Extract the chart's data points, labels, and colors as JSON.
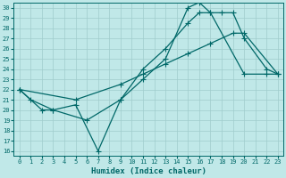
{
  "background_color": "#c0e8e8",
  "grid_color": "#a0cccc",
  "line_color": "#006868",
  "xlabel": "Humidex (Indice chaleur)",
  "xlim": [
    -0.5,
    23.5
  ],
  "ylim": [
    15.5,
    30.5
  ],
  "yticks": [
    16,
    17,
    18,
    19,
    20,
    21,
    22,
    23,
    24,
    25,
    26,
    27,
    28,
    29,
    30
  ],
  "xticks": [
    0,
    1,
    2,
    3,
    4,
    5,
    6,
    7,
    8,
    9,
    10,
    11,
    12,
    13,
    14,
    15,
    16,
    17,
    18,
    19,
    20,
    21,
    22,
    23
  ],
  "line1_x": [
    0,
    2,
    3,
    5,
    7,
    9,
    11,
    13,
    15,
    16,
    17,
    20,
    22,
    23
  ],
  "line1_y": [
    22,
    20,
    20,
    20.5,
    16,
    21,
    23,
    25,
    30,
    30.5,
    29.5,
    23.5,
    23.5,
    23.5
  ],
  "line2_x": [
    0,
    1,
    3,
    6,
    9,
    11,
    13,
    15,
    16,
    17,
    18,
    19,
    20,
    22,
    23
  ],
  "line2_y": [
    22,
    21,
    20,
    19,
    21,
    24,
    26,
    28.5,
    29.5,
    29.5,
    29.5,
    29.5,
    27,
    24,
    23.5
  ],
  "line3_x": [
    0,
    5,
    9,
    11,
    13,
    15,
    17,
    19,
    20,
    23
  ],
  "line3_y": [
    22,
    21,
    22.5,
    23.5,
    24.5,
    25.5,
    26.5,
    27.5,
    27.5,
    23.5
  ],
  "marker": "+",
  "markersize": 4,
  "linewidth": 0.9,
  "tick_fontsize": 5,
  "label_fontsize": 6.5
}
